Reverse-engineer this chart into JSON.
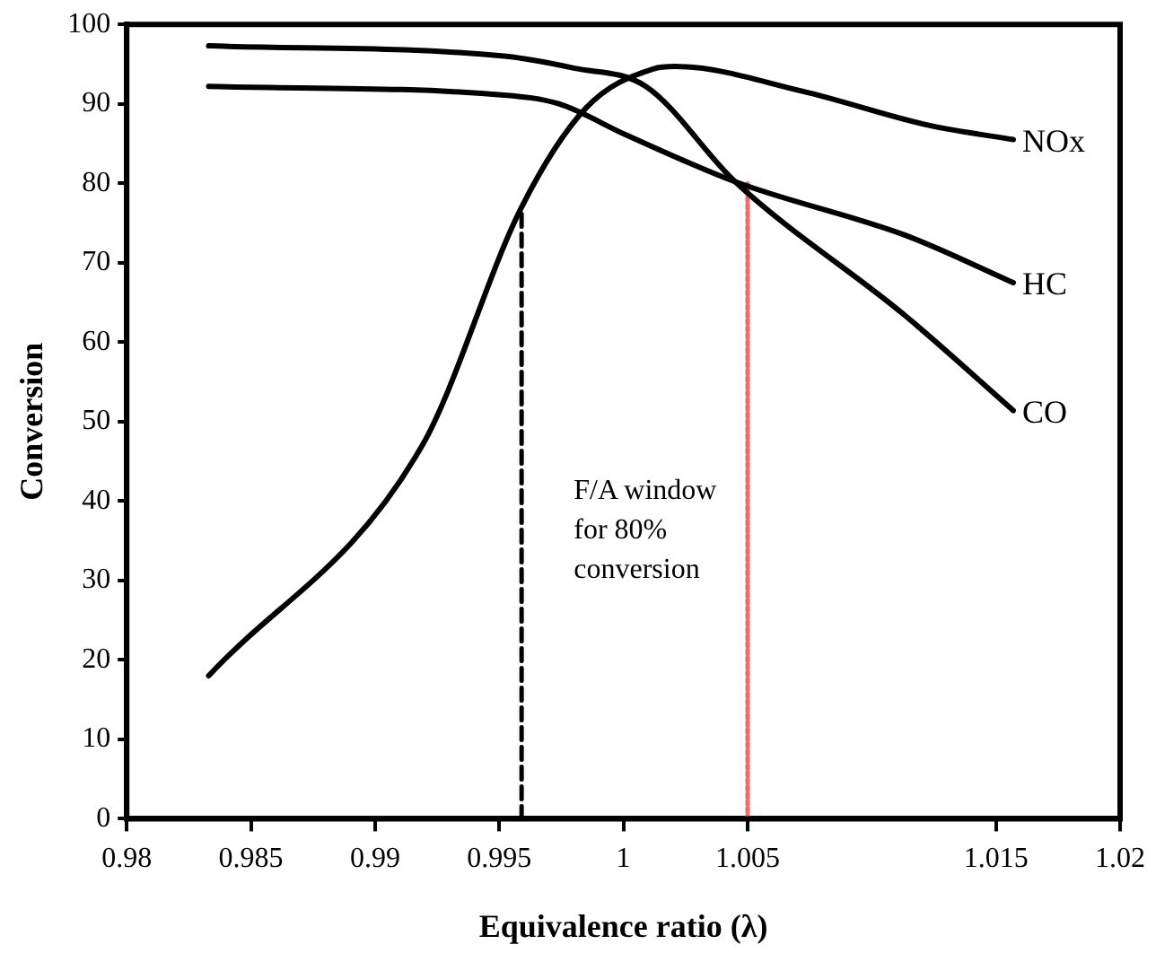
{
  "chart_data": {
    "type": "line",
    "xlabel": "Equivalence ratio (λ)",
    "ylabel": "Conversion",
    "xlim": [
      0.98,
      1.02
    ],
    "xticks": [
      0.98,
      0.985,
      0.99,
      0.995,
      1,
      1.005,
      1.015,
      1.02
    ],
    "ylim": [
      0,
      100
    ],
    "yticks": [
      0,
      10,
      20,
      30,
      40,
      50,
      60,
      70,
      80,
      90,
      100
    ],
    "legend": false,
    "marker": "none",
    "series": [
      {
        "name": "NOx",
        "color": "#000000",
        "x": [
          0.9833,
          0.9919,
          0.9959,
          0.9985,
          1.0012,
          1.0021,
          1.0072,
          1.0123,
          1.0157
        ],
        "values": [
          18,
          47,
          77,
          89.5,
          94.4,
          94.7,
          91.6,
          87.3,
          85.5
        ]
      },
      {
        "name": "HC",
        "color": "#000000",
        "x": [
          0.9833,
          0.9952,
          0.9974,
          1.0001,
          1.0045,
          1.0114,
          1.0157
        ],
        "values": [
          92.2,
          91.1,
          90,
          86.1,
          80.2,
          73.4,
          67.5
        ]
      },
      {
        "name": "CO",
        "color": "#000000",
        "x": [
          0.9833,
          0.9952,
          0.998,
          1.0009,
          1.0045,
          1.0114,
          1.0157
        ],
        "values": [
          97.3,
          96,
          94.5,
          92.2,
          80.2,
          63.2,
          51.4
        ]
      },
      {
        "color": "#000000",
        "line_style": "dashed",
        "x": [
          0.9959,
          0.9959
        ],
        "values": [
          0,
          77
        ]
      },
      {
        "color": "#ff6666",
        "line_style": "dotted",
        "x": [
          1.005,
          1.005
        ],
        "values": [
          0,
          80
        ]
      }
    ],
    "annotations": [
      "F/A window\nfor 80%\nconversion"
    ]
  }
}
